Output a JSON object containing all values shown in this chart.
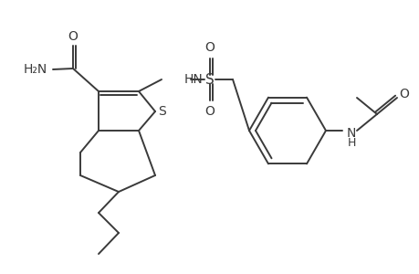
{
  "bg_color": "#ffffff",
  "line_color": "#3a3a3a",
  "line_width": 1.4,
  "fig_width": 4.6,
  "fig_height": 3.0,
  "dpi": 100,
  "atoms": {
    "S_label": "S",
    "S2_label": "S",
    "O_top": "O",
    "O_bot": "O",
    "O_amide": "O",
    "NH2": "H₂N",
    "HN_sul": "HN",
    "NH_ac": "N\nH",
    "O_ac": "O"
  }
}
